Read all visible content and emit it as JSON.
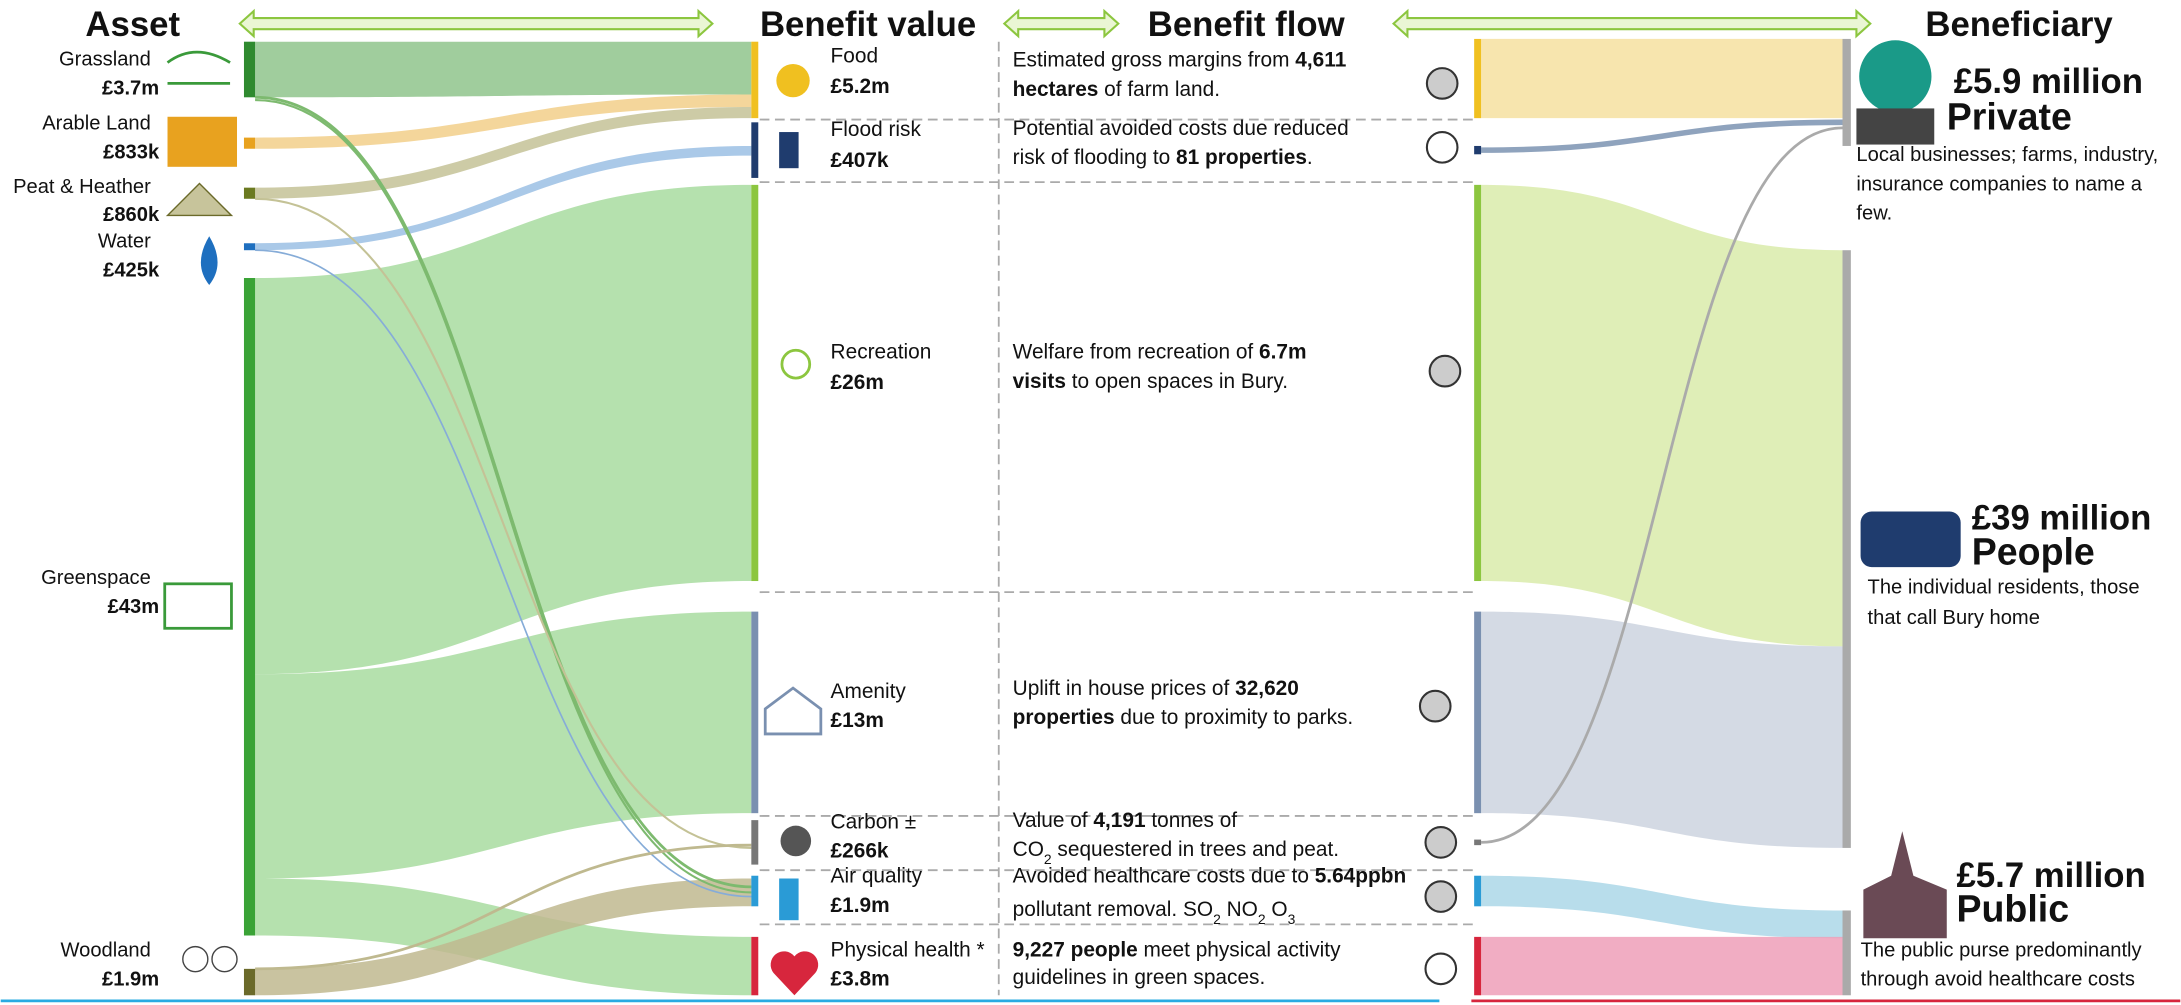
{
  "headers": {
    "asset": "Asset",
    "benefit_value": "Benefit value",
    "benefit_flow": "Benefit flow",
    "beneficiary": "Beneficiary"
  },
  "assets": [
    {
      "name": "Grassland",
      "value": "£3.7m"
    },
    {
      "name": "Arable Land",
      "value": "£833k"
    },
    {
      "name": "Peat & Heather",
      "value": "£860k"
    },
    {
      "name": "Water",
      "value": "£425k"
    },
    {
      "name": "Greenspace",
      "value": "£43m"
    },
    {
      "name": "Woodland",
      "value": "£1.9m"
    }
  ],
  "benefits": [
    {
      "name": "Food",
      "value": "£5.2m",
      "flow": [
        [
          {
            "text": "Estimated gross margins from ",
            "style": "normal"
          },
          {
            "text": "4,611",
            "style": "bold"
          }
        ],
        [
          {
            "text": "hectares",
            "style": "bold"
          },
          {
            "text": " of farm land.",
            "style": "normal"
          }
        ]
      ]
    },
    {
      "name": "Flood risk",
      "value": "£407k",
      "flow": [
        [
          {
            "text": "Potential avoided costs due reduced",
            "style": "normal"
          }
        ],
        [
          {
            "text": "risk of flooding to ",
            "style": "normal"
          },
          {
            "text": "81 properties",
            "style": "bold"
          },
          {
            "text": ".",
            "style": "normal"
          }
        ]
      ]
    },
    {
      "name": "Recreation",
      "value": "£26m",
      "flow": [
        [
          {
            "text": "Welfare from recreation of ",
            "style": "normal"
          },
          {
            "text": "6.7m",
            "style": "bold"
          }
        ],
        [
          {
            "text": "visits",
            "style": "bold"
          },
          {
            "text": " to open spaces in Bury.",
            "style": "normal"
          }
        ]
      ]
    },
    {
      "name": "Amenity",
      "value": "£13m",
      "flow": [
        [
          {
            "text": "Uplift in house prices of ",
            "style": "normal"
          },
          {
            "text": "32,620",
            "style": "bold"
          }
        ],
        [
          {
            "text": "properties",
            "style": "bold"
          },
          {
            "text": " due to proximity to parks.",
            "style": "normal"
          }
        ]
      ]
    },
    {
      "name": "Carbon ±",
      "value": "£266k",
      "flow": [
        [
          {
            "text": "Value of ",
            "style": "normal"
          },
          {
            "text": "4,191",
            "style": "bold"
          },
          {
            "text": " tonnes of",
            "style": "normal"
          }
        ],
        [
          {
            "text": "CO",
            "style": "normal"
          },
          {
            "text": "2",
            "style": "sub"
          },
          {
            "text": " sequestered in trees and peat.",
            "style": "normal"
          }
        ]
      ]
    },
    {
      "name": "Air quality",
      "value": "£1.9m",
      "flow": [
        [
          {
            "text": "Avoided healthcare costs due to ",
            "style": "normal"
          },
          {
            "text": "5.64ppbn",
            "style": "bold"
          }
        ],
        [
          {
            "text": "pollutant removal. SO",
            "style": "normal"
          },
          {
            "text": "2",
            "style": "sub"
          },
          {
            "text": " NO",
            "style": "normal"
          },
          {
            "text": "2",
            "style": "sub"
          },
          {
            "text": " O",
            "style": "normal"
          },
          {
            "text": "3",
            "style": "sub"
          }
        ]
      ]
    },
    {
      "name": "Physical health *",
      "value": "£3.8m",
      "flow": [
        [
          {
            "text": "9,227 people",
            "style": "bold"
          },
          {
            "text": " meet physical activity",
            "style": "normal"
          }
        ],
        [
          {
            "text": "guidelines in green spaces.",
            "style": "normal"
          }
        ]
      ]
    }
  ],
  "beneficiaries": [
    {
      "amount": "£5.9 million",
      "name": "Private",
      "description": [
        "Local businesses; farms, industry,",
        "insurance companies to name a",
        "few."
      ]
    },
    {
      "amount": "£39 million",
      "name": "People",
      "description": [
        "The individual residents, those",
        "that call Bury home"
      ]
    },
    {
      "amount": "£5.7 million",
      "name": "Public",
      "description": [
        "The public purse predominantly",
        "through avoid healthcare costs"
      ]
    }
  ]
}
